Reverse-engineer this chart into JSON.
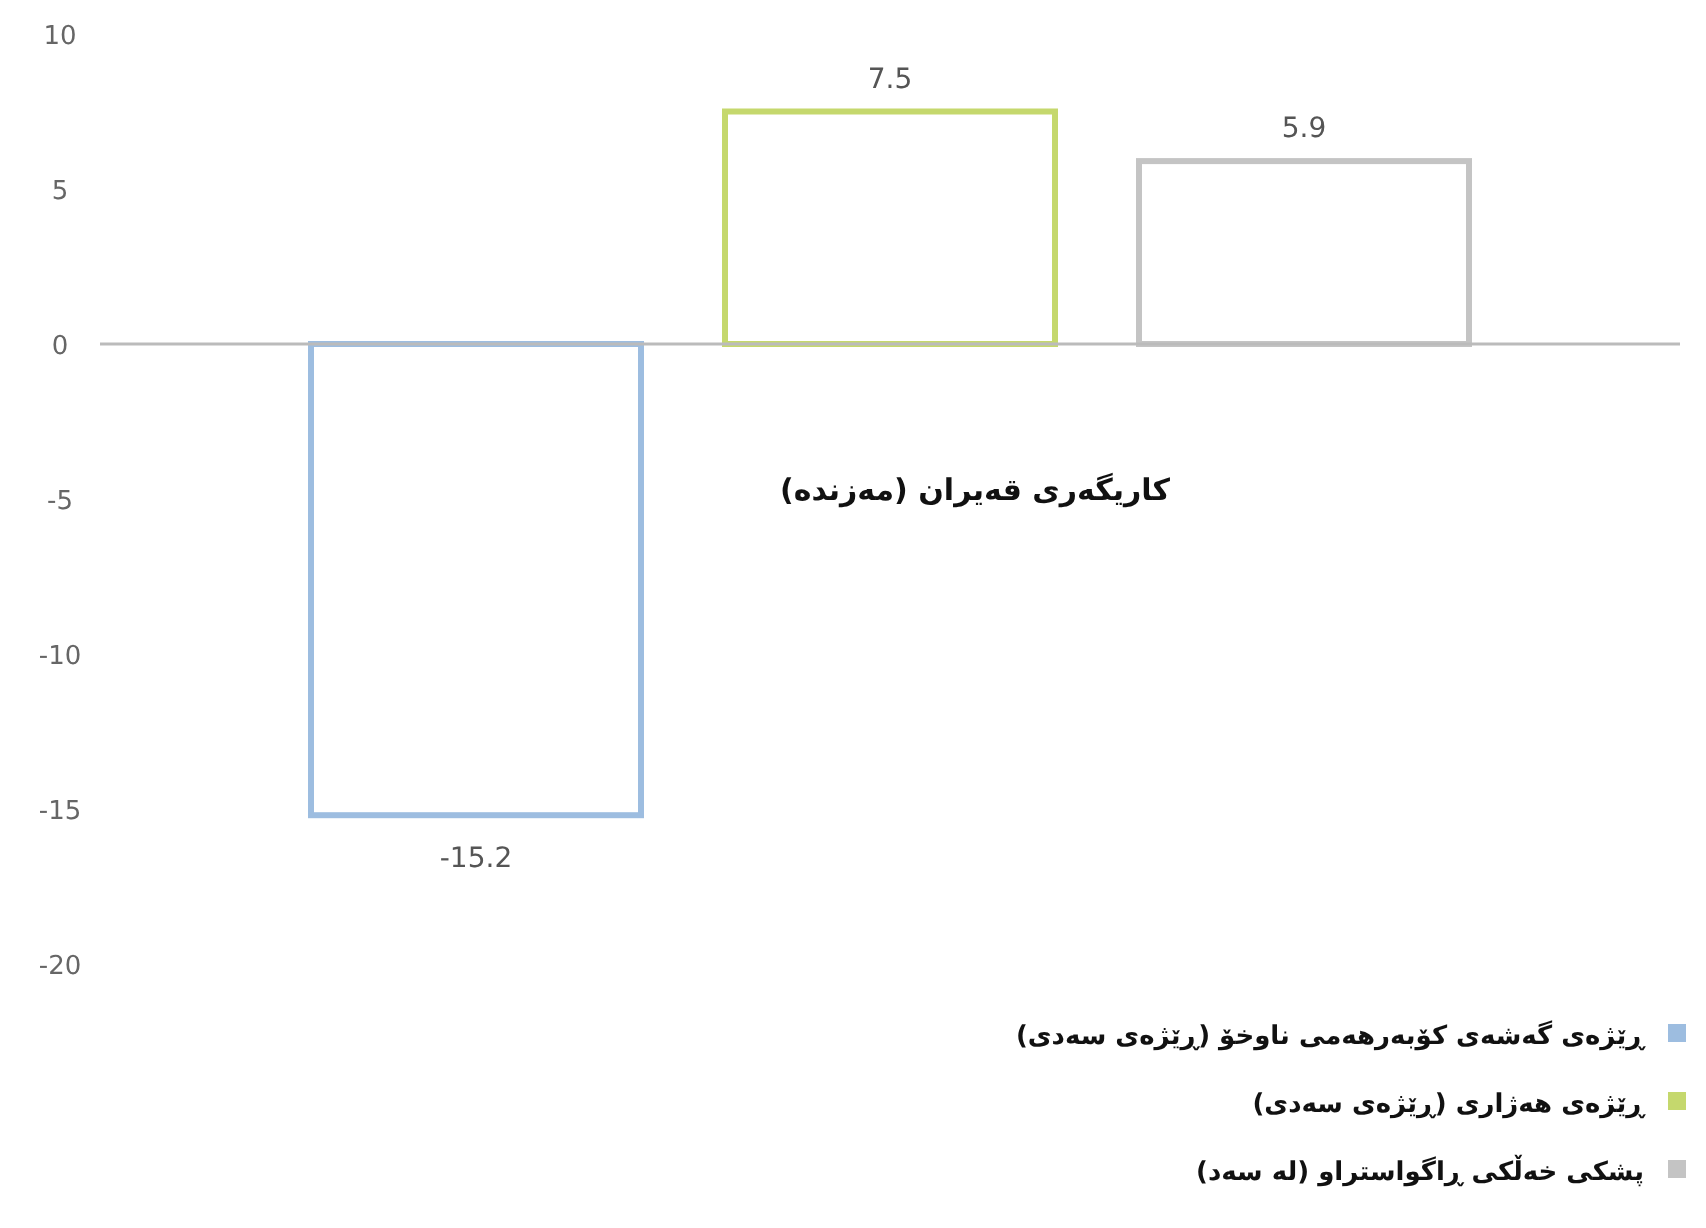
{
  "chart_data": {
    "type": "bar",
    "title": "کاریگەری قەیران (مەزندە)",
    "categories": [
      null
    ],
    "series": [
      {
        "name": "ڕێژەی گەشەی کۆبەرهەمی ناوخۆ (ڕێژەی سەدی)",
        "color": "#9dbde0",
        "values": [
          -15.2
        ]
      },
      {
        "name": "ڕێژەی هەژاری (ڕێژەی سەدی)",
        "color": "#c5d86d",
        "values": [
          7.5
        ]
      },
      {
        "name": "پشکی خەڵکی ڕاگواستراو (لە سەد)",
        "color": "#c4c4c4",
        "values": [
          5.9
        ]
      }
    ],
    "ylim": [
      -20,
      10
    ],
    "yticks": [
      -20,
      -15,
      -10,
      -5,
      0,
      5,
      10
    ],
    "data_labels": true,
    "legend": "bottom right"
  }
}
